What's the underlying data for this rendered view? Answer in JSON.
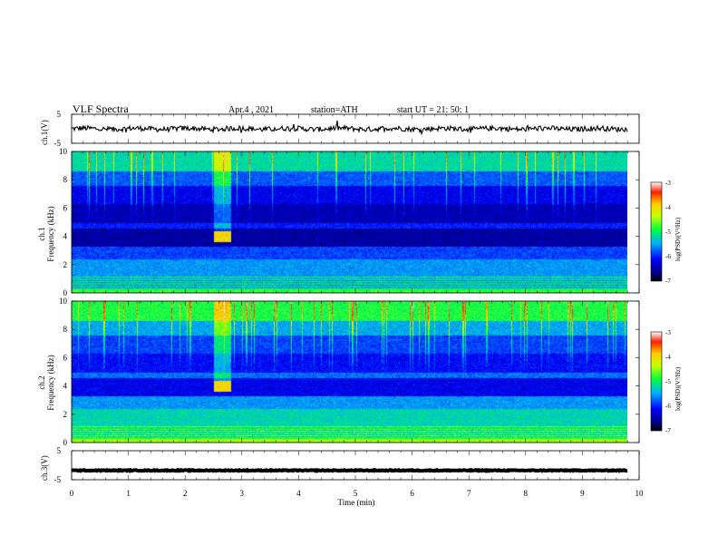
{
  "header": {
    "title": "VLF  Spectra",
    "date": "Apr.4  , 2021",
    "station": "station=ATH",
    "start": "start  UT  =   21: 50: 1"
  },
  "chart_data": [
    {
      "type": "line",
      "name": "ch.1",
      "ylabel": "ch.1(V)",
      "ylim": [
        -5,
        5
      ],
      "yticks": [
        "5",
        "-5"
      ],
      "x_range_min": [
        0,
        9.8
      ],
      "description_level": "noisy trace near 0 V"
    },
    {
      "type": "heatmap",
      "name": "ch.1",
      "ylabel_lines": [
        "ch.1",
        "Frequency  (kHz)"
      ],
      "ylim": [
        0,
        10
      ],
      "yticks": [
        "0",
        "2",
        "4",
        "6",
        "8",
        "10"
      ],
      "x_range_min": [
        0,
        9.8
      ],
      "colorbar": {
        "label": "log(PSD)(V²/Hz)",
        "range": [
          -7,
          -3
        ],
        "ticks": [
          "-3",
          "-4",
          "-5",
          "-6",
          "-7"
        ]
      },
      "event": {
        "t_start_min": 2.5,
        "t_end_min": 2.8,
        "f_low_khz": 3.6,
        "f_high_khz": 4.4
      }
    },
    {
      "type": "heatmap",
      "name": "ch.2",
      "ylabel_lines": [
        "ch.2",
        "Frequency  (kHz)"
      ],
      "ylim": [
        0,
        10
      ],
      "yticks": [
        "0",
        "2",
        "4",
        "6",
        "8",
        "10"
      ],
      "x_range_min": [
        0,
        9.8
      ],
      "colorbar": {
        "label": "log(PSD)(V²/Hz)",
        "range": [
          -7,
          -3
        ],
        "ticks": [
          "-3",
          "-4",
          "-5",
          "-6",
          "-7"
        ]
      },
      "event": {
        "t_start_min": 2.5,
        "t_end_min": 2.8,
        "f_low_khz": 3.6,
        "f_high_khz": 4.4
      }
    },
    {
      "type": "line",
      "name": "ch.3",
      "ylabel": "ch.3(V)",
      "ylim": [
        -5,
        5
      ],
      "yticks": [
        "5",
        "-5"
      ],
      "x_range_min": [
        0,
        9.8
      ],
      "level_v": -1.8
    }
  ],
  "x_axis": {
    "label": "Time  (min)",
    "range": [
      0,
      10
    ],
    "ticks": [
      "0",
      "1",
      "2",
      "3",
      "4",
      "5",
      "6",
      "7",
      "8",
      "9",
      "10"
    ]
  }
}
